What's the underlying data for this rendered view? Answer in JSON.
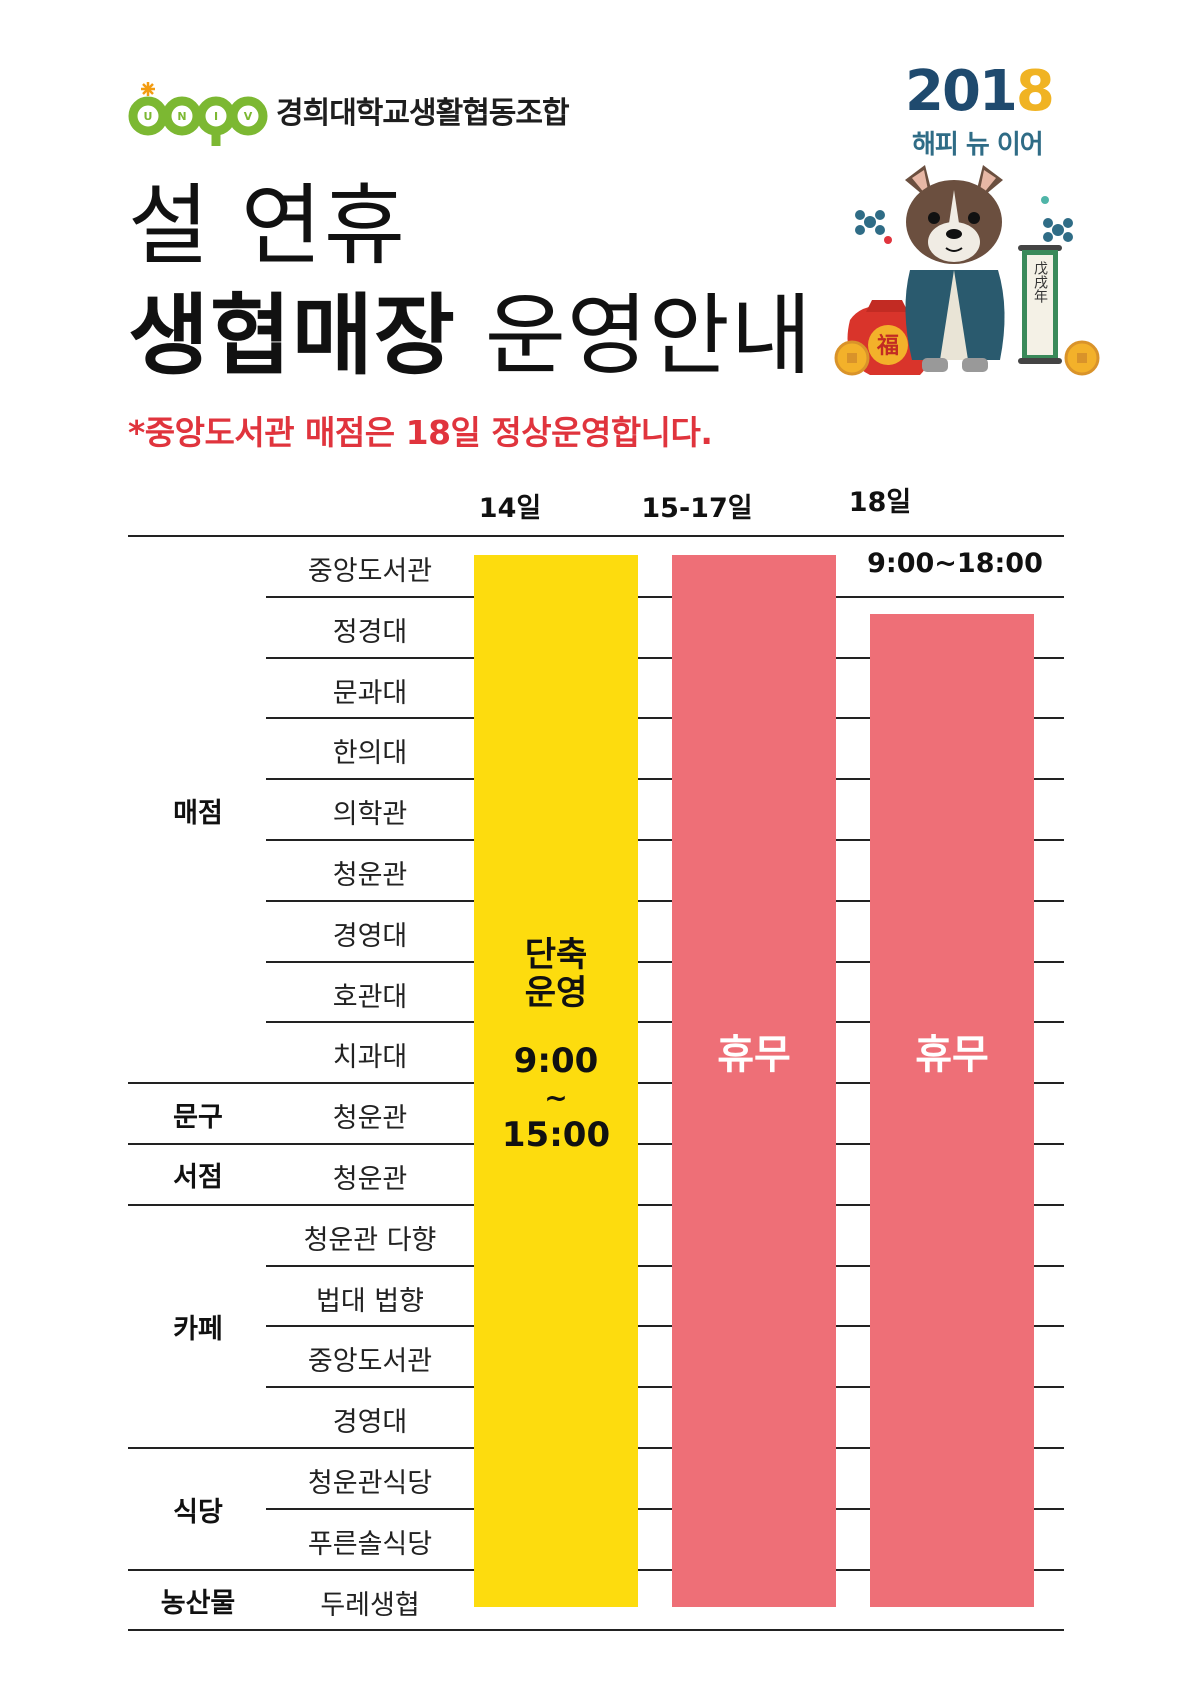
{
  "brand": {
    "logo_text": "UNIV",
    "org_name": "경희대학교생활협동조합",
    "colors": {
      "logo_green": "#7cb832",
      "logo_orange": "#f39c12"
    }
  },
  "badge": {
    "year_a": "201",
    "year_b": "8",
    "subtitle": "해피 뉴 이어",
    "scroll_text": "戊戌年",
    "lucky_char": "福",
    "illustration": "dog-in-hanbok-icon"
  },
  "title": {
    "line1": "설 연휴",
    "line2_bold": "생협매장",
    "line2_rest": " 운영안내"
  },
  "notice": "*중앙도서관 매점은 18일 정상운영합니다.",
  "columns": [
    "14일",
    "15-17일",
    "18일"
  ],
  "categories": [
    {
      "label": "매점",
      "rows": [
        "중앙도서관",
        "정경대",
        "문과대",
        "한의대",
        "의학관",
        "청운관",
        "경영대",
        "호관대",
        "치과대"
      ]
    },
    {
      "label": "문구",
      "rows": [
        "청운관"
      ]
    },
    {
      "label": "서점",
      "rows": [
        "청운관"
      ]
    },
    {
      "label": "카페",
      "rows": [
        "청운관 다향",
        "법대 법향",
        "중앙도서관",
        "경영대"
      ]
    },
    {
      "label": "식당",
      "rows": [
        "청운관식당",
        "푸른솔식당"
      ]
    },
    {
      "label": "농산물",
      "rows": [
        "두레생협"
      ]
    }
  ],
  "schedule": {
    "day14": {
      "line1": "단축",
      "line2": "운영",
      "open": "9:00",
      "tilde": "~",
      "close": "15:00",
      "color": "#fddc0e"
    },
    "day15_17": {
      "label": "휴무",
      "color": "#ee6f77"
    },
    "day18": {
      "label": "휴무",
      "color": "#ee6f77",
      "exception_hours": "9:00~18:00"
    }
  }
}
